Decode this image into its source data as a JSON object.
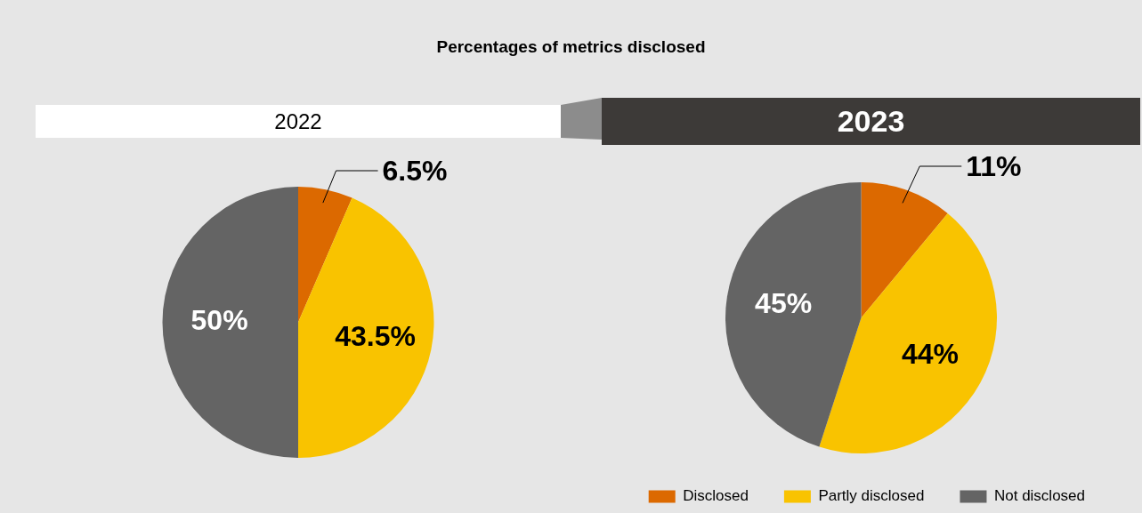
{
  "chart_data": [
    {
      "type": "pie",
      "title": "Percentages of metrics disclosed",
      "subtitle": "2022",
      "categories": [
        null,
        null,
        null
      ],
      "values": [
        6.5,
        43.5,
        50
      ],
      "colors": [
        "#dc6900",
        "#f9c300",
        "#646464"
      ],
      "value_labels": [
        "6.5%",
        "43.5%",
        "50%"
      ],
      "legend": false
    },
    {
      "type": "pie",
      "title": "2023",
      "categories": [
        "Disclosed",
        "Partly disclosed",
        "Not disclosed"
      ],
      "values": [
        11,
        44,
        45
      ],
      "colors": [
        "#dc6900",
        "#f9c300",
        "#646464"
      ],
      "value_labels": [
        "11%",
        "44%",
        "45%"
      ],
      "legend": "bottom right"
    }
  ]
}
